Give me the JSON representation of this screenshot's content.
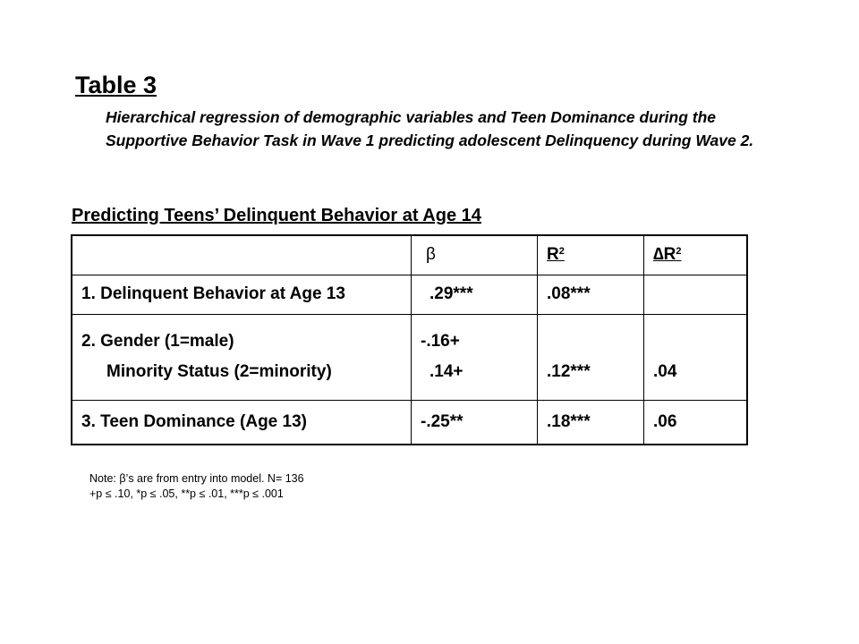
{
  "title": "Table 3",
  "caption": "Hierarchical regression of demographic variables and Teen Dominance during the Supportive Behavior Task in Wave 1 predicting adolescent Delinquency during Wave 2.",
  "subtitle": "Predicting Teens’ Delinquent Behavior at Age 14",
  "table": {
    "headers": {
      "beta": "β",
      "r2_base": "R",
      "r2_sup": "2",
      "dr2_base": "∆R",
      "dr2_sup": "2"
    },
    "rows": [
      {
        "label": "1. Delinquent Behavior at Age 13",
        "beta": ".29***",
        "r2": ".08***",
        "dr2": ""
      },
      {
        "label_a": "2. Gender (1=male)",
        "label_b": "Minority Status (2=minority)",
        "beta_a": "-.16+",
        "beta_b": ".14+",
        "r2": ".12***",
        "dr2": ".04"
      },
      {
        "label": "3. Teen Dominance (Age 13)",
        "beta": "-.25**",
        "r2": ".18***",
        "dr2": ".06"
      }
    ]
  },
  "notes": {
    "line1": "Note: β’s are from entry into model. N= 136",
    "line2": "+p ≤ .10, *p ≤ .05, **p ≤ .01, ***p ≤ .001"
  }
}
